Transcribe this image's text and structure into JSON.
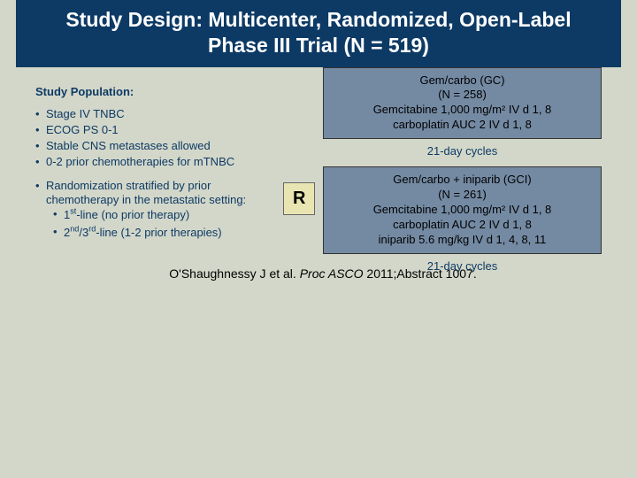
{
  "title": "Study Design: Multicenter, Randomized, Open-Label Phase III Trial (N = 519)",
  "population": {
    "heading": "Study Population:",
    "items": [
      "Stage IV TNBC",
      "ECOG PS 0-1",
      "Stable CNS metastases allowed",
      "0-2 prior chemotherapies for mTNBC"
    ],
    "strat_intro": "Randomization stratified by prior chemotherapy in the metastatic setting:",
    "strat_sub": [
      "1st-line (no prior therapy)",
      "2nd/3rd-line (1-2 prior therapies)"
    ]
  },
  "randomize_label": "R",
  "arm1": {
    "line1": "Gem/carbo (GC)",
    "line2": "(N = 258)",
    "line3": "Gemcitabine 1,000 mg/m² IV d 1, 8",
    "line4": "carboplatin AUC 2 IV d 1, 8",
    "cycles": "21-day cycles"
  },
  "arm2": {
    "line1": "Gem/carbo + iniparib (GCI)",
    "line2": "(N = 261)",
    "line3": "Gemcitabine 1,000 mg/m² IV d 1, 8",
    "line4": "carboplatin AUC 2 IV d 1, 8",
    "line5": "iniparib 5.6 mg/kg IV d 1, 4, 8, 11",
    "cycles": "21-day cycles"
  },
  "citation": {
    "authors": "O'Shaughnessy J et al. ",
    "source": "Proc ASCO",
    "rest": " 2011;Abstract 1007."
  },
  "colors": {
    "page_bg": "#d3d7c9",
    "title_bg": "#0d3a65",
    "title_fg": "#ffffff",
    "body_text": "#0d3a65",
    "arm_bg": "#748aa3",
    "r_bg": "#e9e5b3"
  }
}
